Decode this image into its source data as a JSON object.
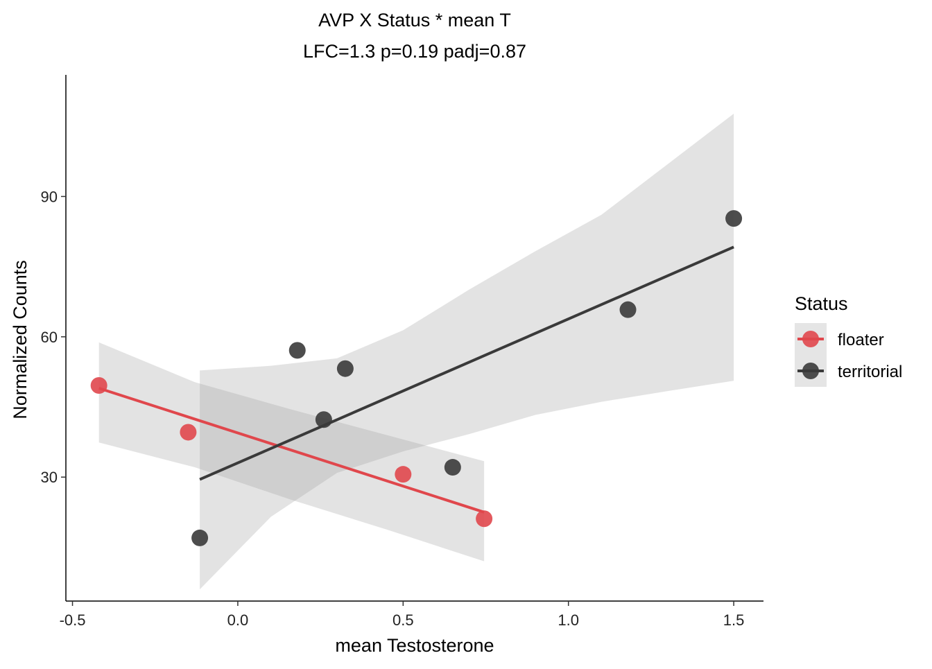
{
  "chart_data": {
    "type": "scatter",
    "title": "AVP X Status * mean T",
    "subtitle": "LFC=1.3 p=0.19 padj=0.87",
    "xlabel": "mean Testosterone",
    "ylabel": "Normalized Counts",
    "xlim": [
      -0.52,
      1.59
    ],
    "ylim": [
      3.5,
      116
    ],
    "x_ticks": [
      -0.5,
      0.0,
      0.5,
      1.0,
      1.5
    ],
    "x_tick_labels": [
      "-0.5",
      "0.0",
      "0.5",
      "1.0",
      "1.5"
    ],
    "y_ticks": [
      30,
      60,
      90
    ],
    "y_tick_labels": [
      "30",
      "60",
      "90"
    ],
    "grid": false,
    "legend": {
      "title": "Status",
      "position": "right"
    },
    "series": [
      {
        "name": "floater",
        "color": "#E0474C",
        "points": [
          {
            "x": -0.42,
            "y": 49.6
          },
          {
            "x": -0.15,
            "y": 39.6
          },
          {
            "x": 0.5,
            "y": 30.6
          },
          {
            "x": 0.745,
            "y": 21.1
          }
        ],
        "fit": {
          "x": [
            -0.42,
            0.745
          ],
          "y": [
            49.0,
            22.5
          ]
        },
        "ci": {
          "x": [
            -0.42,
            -0.13,
            0.16,
            0.45,
            0.745
          ],
          "lower": [
            37.4,
            32.1,
            25.2,
            18.8,
            12.0
          ],
          "upper": [
            58.8,
            50.3,
            44.5,
            39.0,
            33.4
          ]
        }
      },
      {
        "name": "territorial",
        "color": "#3A3A3A",
        "points": [
          {
            "x": -0.115,
            "y": 17.0
          },
          {
            "x": 0.18,
            "y": 57.1
          },
          {
            "x": 0.26,
            "y": 42.3
          },
          {
            "x": 0.325,
            "y": 53.2
          },
          {
            "x": 0.65,
            "y": 32.1
          },
          {
            "x": 1.18,
            "y": 65.8
          },
          {
            "x": 1.5,
            "y": 85.3
          }
        ],
        "fit": {
          "x": [
            -0.115,
            1.5
          ],
          "y": [
            29.5,
            79.2
          ]
        },
        "ci": {
          "x": [
            -0.115,
            0.1,
            0.3,
            0.5,
            0.7,
            0.9,
            1.1,
            1.3,
            1.5
          ],
          "lower": [
            6.0,
            21.5,
            30.9,
            35.5,
            39.2,
            43.3,
            46.1,
            48.4,
            50.6
          ],
          "upper": [
            52.8,
            53.8,
            55.4,
            61.4,
            70.1,
            78.3,
            86.1,
            96.9,
            107.7
          ]
        }
      }
    ]
  }
}
